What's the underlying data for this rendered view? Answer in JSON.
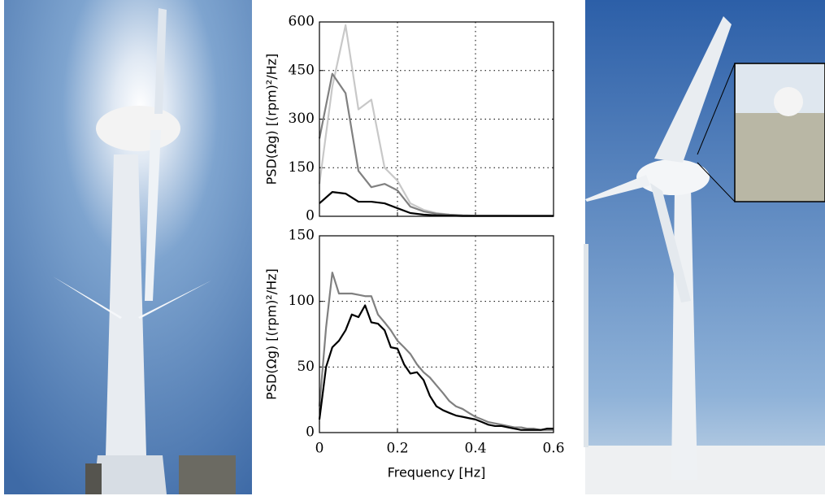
{
  "chart_data": [
    {
      "type": "line",
      "ylabel": "PSD(Ωg) [(rpm)²/Hz]",
      "x": [
        0,
        0.033,
        0.067,
        0.1,
        0.133,
        0.167,
        0.2,
        0.233,
        0.267,
        0.3,
        0.333,
        0.367,
        0.4,
        0.433,
        0.467,
        0.5,
        0.533,
        0.567,
        0.6
      ],
      "series": [
        {
          "color": "#c8c8c8",
          "values": [
            100,
            400,
            590,
            330,
            360,
            150,
            110,
            40,
            20,
            10,
            5,
            3,
            2,
            2,
            2,
            1,
            1,
            1,
            1
          ]
        },
        {
          "color": "#808080",
          "values": [
            240,
            440,
            380,
            140,
            90,
            100,
            80,
            30,
            15,
            8,
            5,
            3,
            2,
            2,
            2,
            2,
            2,
            2,
            2
          ]
        },
        {
          "color": "#000000",
          "values": [
            40,
            75,
            70,
            45,
            45,
            40,
            25,
            10,
            5,
            3,
            2,
            1,
            1,
            1,
            1,
            1,
            1,
            1,
            1
          ]
        }
      ],
      "xlim": [
        0,
        0.6
      ],
      "xticks": [
        0,
        0.2,
        0.4,
        0.6
      ],
      "ylim": [
        0,
        600
      ],
      "yticks": [
        0,
        150,
        300,
        450,
        600
      ],
      "grid": true
    },
    {
      "type": "line",
      "ylabel": "PSD(Ωg) [(rpm)²/Hz]",
      "xlabel": "Frequency [Hz]",
      "x": [
        0,
        0.017,
        0.033,
        0.05,
        0.067,
        0.083,
        0.1,
        0.117,
        0.133,
        0.15,
        0.167,
        0.183,
        0.2,
        0.217,
        0.233,
        0.25,
        0.267,
        0.283,
        0.3,
        0.317,
        0.333,
        0.35,
        0.367,
        0.383,
        0.4,
        0.417,
        0.433,
        0.45,
        0.467,
        0.483,
        0.5,
        0.517,
        0.533,
        0.55,
        0.567,
        0.583,
        0.6
      ],
      "series": [
        {
          "color": "#808080",
          "values": [
            20,
            80,
            122,
            106,
            106,
            106,
            105,
            104,
            104,
            90,
            84,
            78,
            70,
            65,
            60,
            52,
            46,
            42,
            36,
            30,
            24,
            20,
            18,
            15,
            12,
            10,
            8,
            7,
            6,
            5,
            4,
            4,
            3,
            3,
            2,
            2,
            2
          ]
        },
        {
          "color": "#000000",
          "values": [
            10,
            50,
            65,
            70,
            78,
            90,
            88,
            97,
            84,
            83,
            78,
            65,
            64,
            52,
            45,
            46,
            40,
            28,
            20,
            17,
            15,
            13,
            12,
            11,
            10,
            8,
            6,
            5,
            5,
            4,
            3,
            2,
            2,
            2,
            2,
            3,
            3
          ]
        }
      ],
      "xlim": [
        0,
        0.6
      ],
      "xticks": [
        0,
        0.2,
        0.4,
        0.6
      ],
      "ylim": [
        0,
        150
      ],
      "yticks": [
        0,
        50,
        100,
        150
      ],
      "grid": true
    }
  ]
}
